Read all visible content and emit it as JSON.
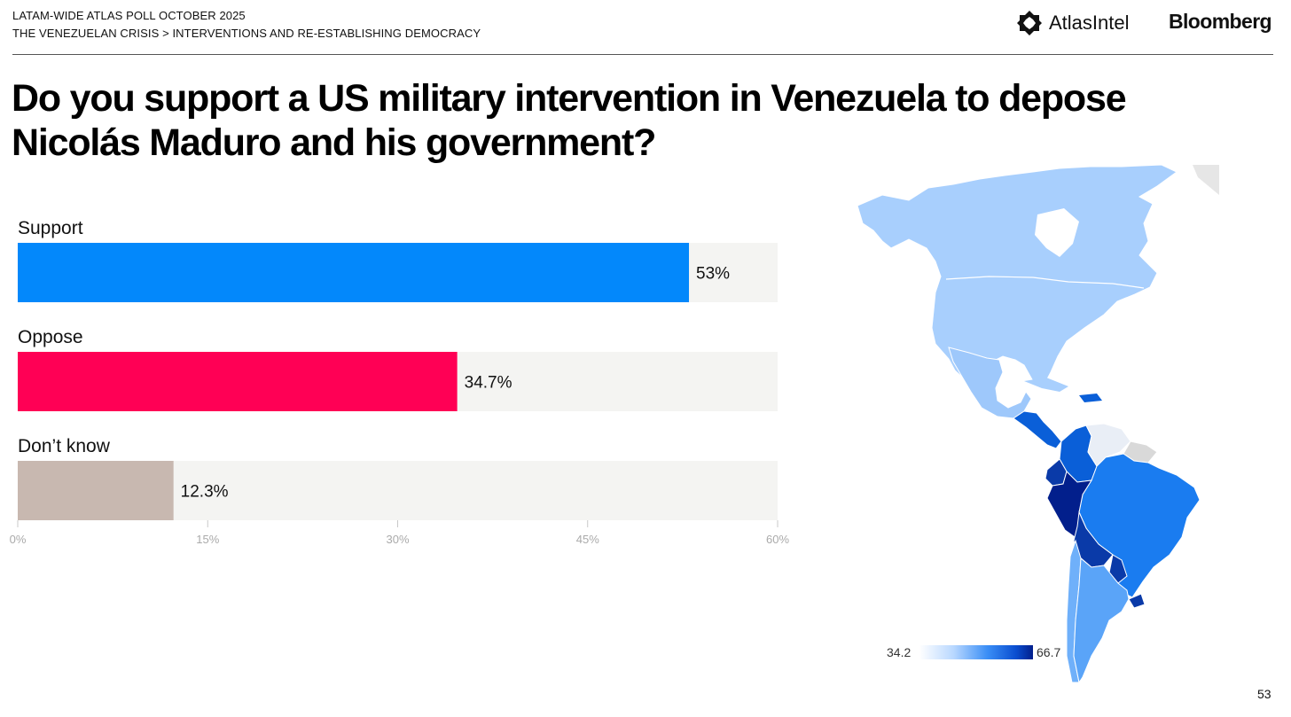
{
  "header": {
    "line1": "LATAM-WIDE ATLAS POLL OCTOBER 2025",
    "line2": "THE VENEZUELAN CRISIS > INTERVENTIONS AND RE-ESTABLISHING DEMOCRACY"
  },
  "logos": {
    "atlas": "AtlasIntel",
    "atlas_icon": "atlasintel-logo-icon",
    "bloomberg": "Bloomberg"
  },
  "question": "Do you support a US military intervention in Venezuela to depose Nicolás Maduro and his government?",
  "page_number": "53",
  "colors": {
    "support": "#0388fb",
    "oppose": "#ff0055",
    "dont_know": "#c8b8b0",
    "track": "#f4f4f2",
    "axis_text": "#aaaaaa"
  },
  "chart_data": {
    "type": "bar",
    "orientation": "horizontal",
    "categories": [
      "Support",
      "Oppose",
      "Don’t know"
    ],
    "values": [
      53,
      34.7,
      12.3
    ],
    "value_labels": [
      "53%",
      "34.7%",
      "12.3%"
    ],
    "xlim": [
      0,
      60
    ],
    "xticks": [
      0,
      15,
      30,
      45,
      60
    ],
    "xtick_labels": [
      "0%",
      "15%",
      "30%",
      "45%",
      "60%"
    ],
    "title": "Do you support a US military intervention in Venezuela to depose Nicolás Maduro and his government?"
  },
  "map_legend": {
    "min_label": "34.2",
    "max_label": "66.7",
    "min_value": 34.2,
    "max_value": 66.7,
    "colors": [
      "#ffffff",
      "#b9d8ff",
      "#3a8ef6",
      "#0a4ed0",
      "#021f8c"
    ]
  }
}
